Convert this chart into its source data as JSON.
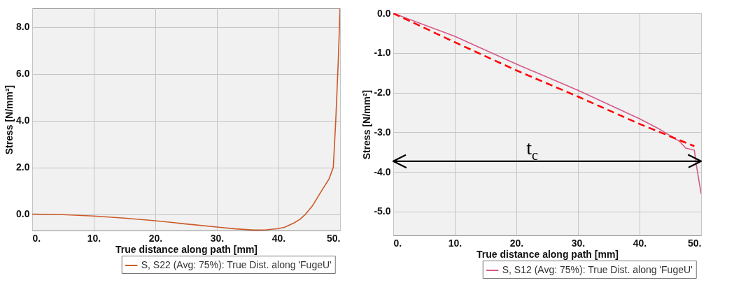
{
  "chart_data": [
    {
      "type": "line",
      "xlabel": "True distance along path [mm]",
      "ylabel": "Stress [N/mm²]",
      "xlim": [
        0,
        50
      ],
      "ylim": [
        -0.7,
        8.8
      ],
      "xticks": [
        {
          "value": 0,
          "label": "0."
        },
        {
          "value": 10,
          "label": "10."
        },
        {
          "value": 20,
          "label": "20."
        },
        {
          "value": 30,
          "label": "30."
        },
        {
          "value": 40,
          "label": "40."
        },
        {
          "value": 50,
          "label": "50."
        }
      ],
      "yticks": [
        {
          "value": 0,
          "label": "0.0"
        },
        {
          "value": 2,
          "label": "2.0"
        },
        {
          "value": 4,
          "label": "4.0"
        },
        {
          "value": 6,
          "label": "6.0"
        },
        {
          "value": 8,
          "label": "8.0"
        }
      ],
      "grid": true,
      "legend": "bottom right",
      "series": [
        {
          "name": "S, S22 (Avg: 75%): True Dist. along 'FugeU'",
          "color": "#cc5a28",
          "x": [
            0,
            5,
            10,
            15,
            20,
            25,
            30,
            33,
            36,
            38,
            40,
            41,
            42.5,
            43.5,
            44.4,
            45.5,
            47,
            48.2,
            48.9,
            49.3,
            49.7,
            50
          ],
          "values": [
            0,
            -0.02,
            -0.08,
            -0.17,
            -0.28,
            -0.42,
            -0.55,
            -0.63,
            -0.68,
            -0.67,
            -0.62,
            -0.56,
            -0.38,
            -0.22,
            0,
            0.35,
            1.0,
            1.5,
            2.0,
            4.0,
            6.5,
            8.8
          ]
        }
      ]
    },
    {
      "type": "line",
      "xlabel": "True distance along path [mm]",
      "ylabel": "Stress [N/mm²]",
      "xlim": [
        0,
        50
      ],
      "ylim": [
        -5.6,
        0
      ],
      "xticks": [
        {
          "value": 0,
          "label": "0."
        },
        {
          "value": 10,
          "label": "10."
        },
        {
          "value": 20,
          "label": "20."
        },
        {
          "value": 30,
          "label": "30."
        },
        {
          "value": 40,
          "label": "40."
        },
        {
          "value": 50,
          "label": "50."
        }
      ],
      "yticks": [
        {
          "value": 0,
          "label": "0.0"
        },
        {
          "value": -1,
          "label": "-1.0"
        },
        {
          "value": -2,
          "label": "-2.0"
        },
        {
          "value": -3,
          "label": "-3.0"
        },
        {
          "value": -4,
          "label": "-4.0"
        },
        {
          "value": -5,
          "label": "-5.0"
        }
      ],
      "grid": true,
      "legend": "bottom right",
      "ref_lines": [
        {
          "axis": "y",
          "value": -3.73,
          "label": "t$_{c}$",
          "color": "#000000"
        }
      ],
      "series": [
        {
          "name": "S, S12 (Avg: 75%): True Dist. along 'FugeU'",
          "color": "#d45a8a",
          "x": [
            0,
            10,
            20,
            30,
            40,
            43,
            46.5,
            47.5,
            48.9,
            49.3,
            50
          ],
          "values": [
            0,
            -0.58,
            -1.28,
            -1.94,
            -2.66,
            -2.9,
            -3.23,
            -3.4,
            -3.45,
            -3.9,
            -4.55
          ]
        },
        {
          "type": "line",
          "color": "#ff0000",
          "line_style": "dashed",
          "x": [
            0,
            10,
            20,
            30,
            40,
            48.9
          ],
          "values": [
            0,
            -0.73,
            -1.44,
            -2.1,
            -2.79,
            -3.35
          ]
        }
      ]
    }
  ]
}
